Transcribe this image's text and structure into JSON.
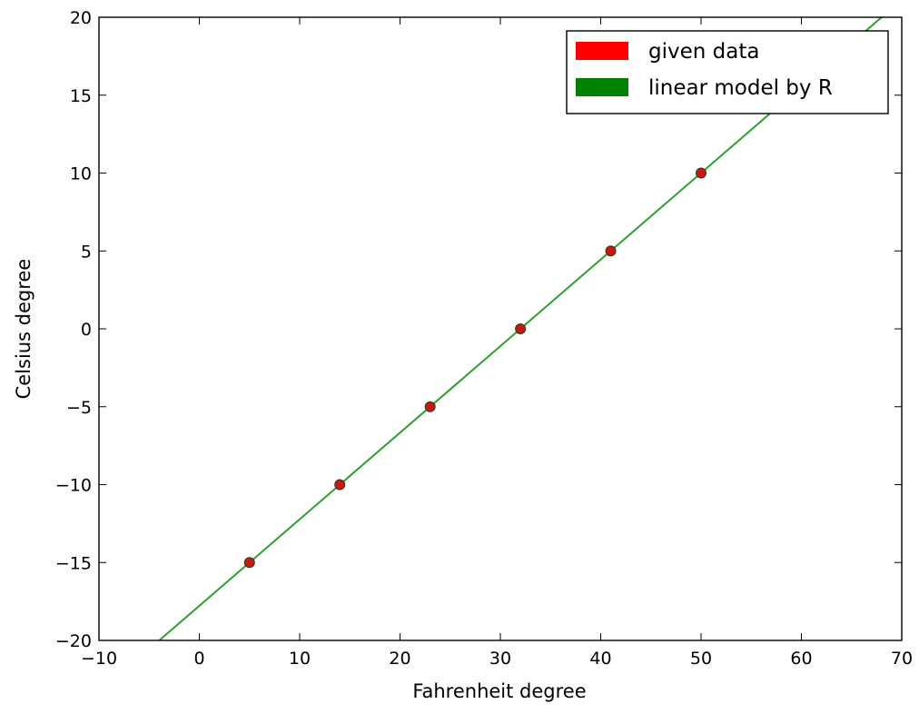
{
  "chart_data": {
    "type": "scatter",
    "title": "",
    "xlabel": "Fahrenheit degree",
    "ylabel": "Celsius degree",
    "xlim": [
      -10,
      70
    ],
    "ylim": [
      -20,
      20
    ],
    "xticks": [
      -10,
      0,
      10,
      20,
      30,
      40,
      50,
      60,
      70
    ],
    "yticks": [
      -20,
      -15,
      -10,
      -5,
      0,
      5,
      10,
      15,
      20
    ],
    "xtick_labels": [
      "−10",
      "0",
      "10",
      "20",
      "30",
      "40",
      "50",
      "60",
      "70"
    ],
    "ytick_labels": [
      "−20",
      "−15",
      "−10",
      "−5",
      "0",
      "5",
      "10",
      "15",
      "20"
    ],
    "grid": false,
    "legend_position": "top-right",
    "series": [
      {
        "name": "given data",
        "kind": "scatter",
        "color": "#c41a10",
        "legend_color": "#ff0000",
        "x": [
          5,
          14,
          23,
          32,
          41,
          50
        ],
        "y": [
          -15,
          -10,
          -5,
          0,
          5,
          10
        ]
      },
      {
        "name": "linear model by R",
        "kind": "line",
        "color": "#2ca02c",
        "legend_color": "#008000",
        "slope": 0.5556,
        "intercept": -17.7778
      }
    ]
  }
}
